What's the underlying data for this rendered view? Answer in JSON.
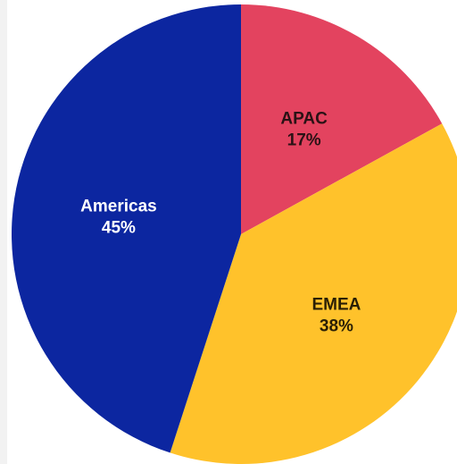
{
  "chart_data": {
    "type": "pie",
    "slices": [
      {
        "label": "APAC",
        "value": 17,
        "display": "17%",
        "color": "#e3435f",
        "text_color": "#2a1215"
      },
      {
        "label": "EMEA",
        "value": 38,
        "display": "38%",
        "color": "#ffc22b",
        "text_color": "#2a1f05"
      },
      {
        "label": "Americas",
        "value": 45,
        "display": "45%",
        "color": "#0c26a0",
        "text_color": "#ffffff"
      }
    ],
    "start_angle_deg": 0,
    "direction": "clockwise",
    "legend": "none",
    "data_labels": "inside"
  }
}
